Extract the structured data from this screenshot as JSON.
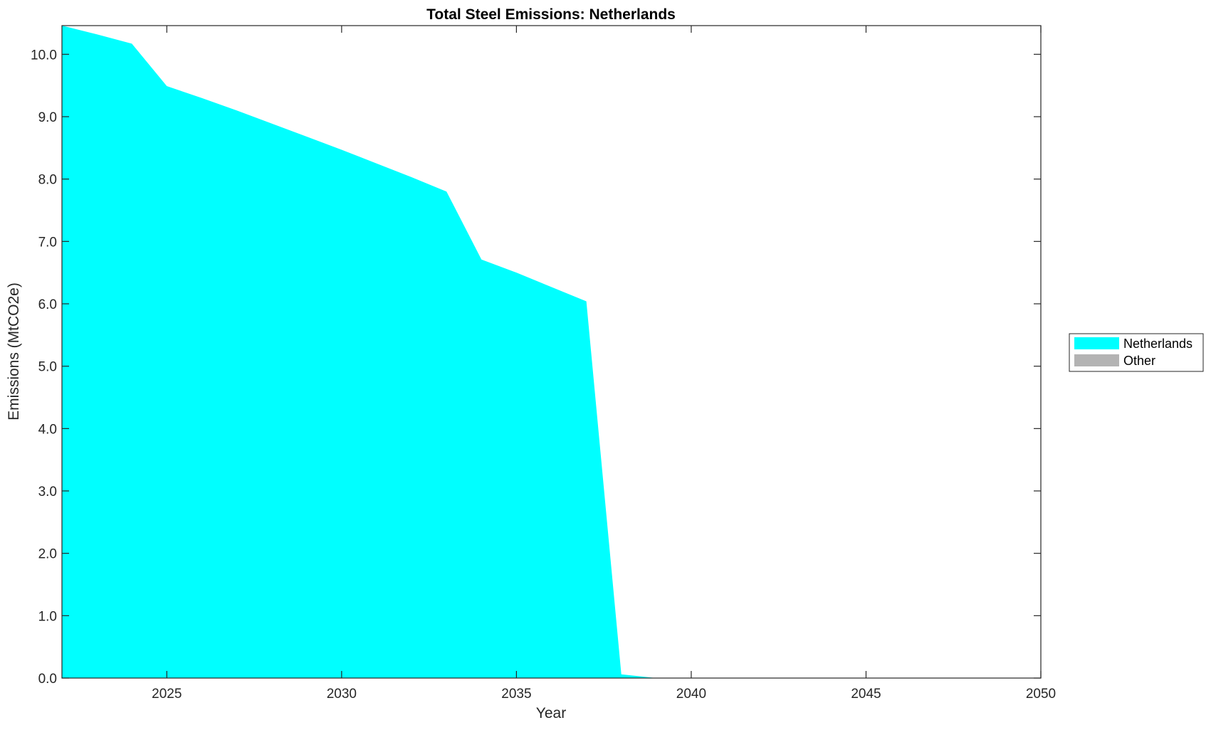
{
  "chart_data": {
    "type": "area",
    "stacked": true,
    "title": "Total Steel Emissions: Netherlands",
    "xlabel": "Year",
    "ylabel": "Emissions (MtCO2e)",
    "xlim": [
      2022,
      2050
    ],
    "ylim": [
      0,
      10.46
    ],
    "xticks": [
      "2025",
      "2030",
      "2035",
      "2040",
      "2045",
      "2050"
    ],
    "xtick_values": [
      2025,
      2030,
      2035,
      2040,
      2045,
      2050
    ],
    "yticks": [
      "0.0",
      "1.0",
      "2.0",
      "3.0",
      "4.0",
      "5.0",
      "6.0",
      "7.0",
      "8.0",
      "9.0",
      "10.0"
    ],
    "ytick_values": [
      0,
      1,
      2,
      3,
      4,
      5,
      6,
      7,
      8,
      9,
      10
    ],
    "grid": false,
    "legend_placement": "right",
    "x": [
      2022,
      2023,
      2024,
      2025,
      2026,
      2027,
      2028,
      2029,
      2030,
      2031,
      2032,
      2033,
      2034,
      2035,
      2036,
      2037,
      2038,
      2039,
      2040,
      2041,
      2042,
      2043,
      2044,
      2045,
      2046,
      2047,
      2048,
      2049,
      2050
    ],
    "series": [
      {
        "name": "Netherlands",
        "color": "#00ffff",
        "values": [
          10.46,
          10.32,
          10.17,
          9.49,
          9.3,
          9.1,
          8.89,
          8.68,
          8.47,
          8.25,
          8.03,
          7.8,
          6.71,
          6.5,
          6.27,
          6.04,
          0.06,
          0,
          0,
          0,
          0,
          0,
          0,
          0,
          0,
          0,
          0,
          0,
          0
        ]
      },
      {
        "name": "Other",
        "color": "#b3b3b3",
        "values": [
          0,
          0,
          0,
          0,
          0,
          0,
          0,
          0,
          0,
          0,
          0,
          0,
          0,
          0,
          0,
          0,
          0,
          0,
          0,
          0,
          0,
          0,
          0,
          0,
          0,
          0,
          0,
          0,
          0
        ]
      }
    ]
  }
}
